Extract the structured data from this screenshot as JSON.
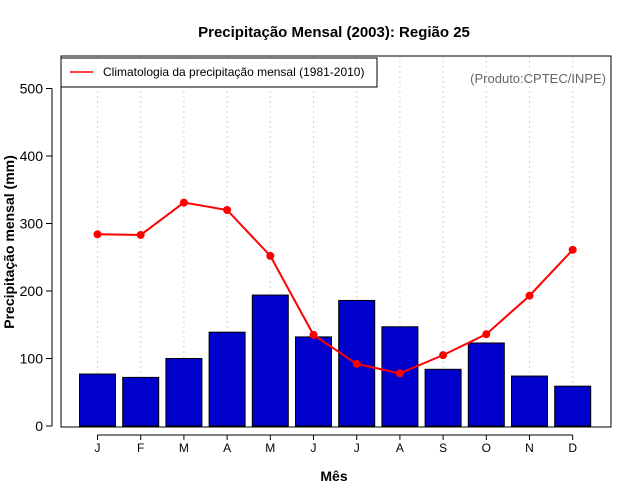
{
  "chart_data": {
    "type": "bar",
    "title": "Precipitação Mensal (2003): Região 25",
    "xlabel": "Mês",
    "ylabel": "Precipitação mensal (mm)",
    "ylim": [
      0,
      540
    ],
    "yticks": [
      0,
      100,
      200,
      300,
      400,
      500
    ],
    "categories": [
      "J",
      "F",
      "M",
      "A",
      "M",
      "J",
      "J",
      "A",
      "S",
      "O",
      "N",
      "D"
    ],
    "series": [
      {
        "name": "Precipitação mensal 2003",
        "type": "bar",
        "color": "#0000cd",
        "values": [
          77,
          72,
          100,
          139,
          194,
          132,
          186,
          147,
          84,
          123,
          74,
          59
        ]
      },
      {
        "name": "Climatologia da precipitação mensal (1981-2010)",
        "type": "line",
        "color": "#ff0000",
        "values": [
          284,
          283,
          331,
          320,
          252,
          135,
          92,
          78,
          105,
          136,
          193,
          261
        ]
      }
    ],
    "legend": {
      "position": "top-left",
      "entries": [
        "Climatologia da precipitação mensal (1981-2010)"
      ]
    },
    "annotation": "(Produto:CPTEC/INPE)",
    "grid": "vertical-dotted"
  }
}
